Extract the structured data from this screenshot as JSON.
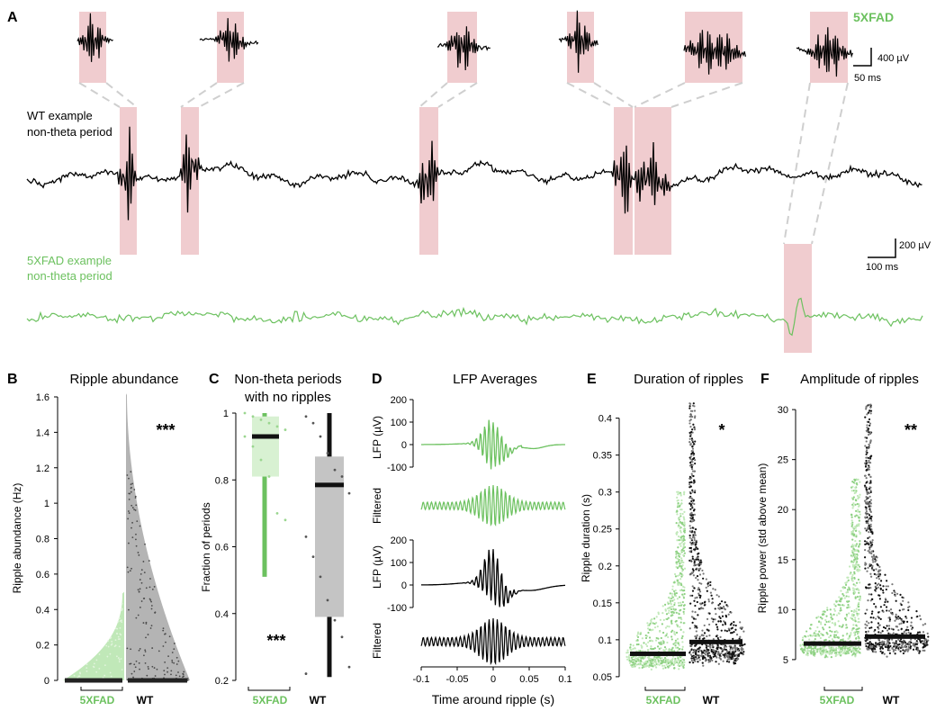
{
  "colors": {
    "fad": "#6cc15f",
    "fad_light": "#b9e6b0",
    "fad_box": "#d8f1d2",
    "wt": "#000000",
    "wt_fill": "#b4b4b4",
    "highlight": "#f0cccf",
    "connector": "#cfcfcf"
  },
  "panels": {
    "A": "A",
    "B": "B",
    "C": "C",
    "D": "D",
    "E": "E",
    "F": "F"
  },
  "panel_a": {
    "legend_label": "5XFAD",
    "wt_label_line1": "WT example",
    "wt_label_line2": "non-theta period",
    "fad_label_line1": "5XFAD example",
    "fad_label_line2": "non-theta period",
    "scalebar_inset_v": "400 µV",
    "scalebar_inset_t": "50 ms",
    "scalebar_main_v": "200 µV",
    "scalebar_main_t": "100 ms"
  },
  "chart_data": [
    {
      "panel": "B",
      "type": "violin",
      "title": "Ripple abundance",
      "xlabel": "",
      "ylabel": "Ripple abundance (Hz)",
      "ylim": [
        0,
        1.6
      ],
      "yticks": [
        "0",
        "0.2",
        "0.4",
        "0.6",
        "0.8",
        "1",
        "1.2",
        "1.4",
        "1.6"
      ],
      "categories": [
        "5XFAD",
        "WT"
      ],
      "medians": [
        0.0,
        0.0
      ],
      "maxima": [
        0.5,
        1.62
      ],
      "significance": "***"
    },
    {
      "panel": "C",
      "type": "box",
      "title_line1": "Non-theta periods",
      "title_line2": "with no ripples",
      "ylabel": "Fraction of periods",
      "ylim": [
        0.2,
        1.0
      ],
      "yticks": [
        "0.2",
        "0.4",
        "0.6",
        "0.8",
        "1"
      ],
      "categories": [
        "5XFAD",
        "WT"
      ],
      "series": [
        {
          "name": "5XFAD",
          "median": 0.93,
          "q1": 0.81,
          "q3": 0.99,
          "whisker_low": 0.51,
          "whisker_high": 1.0,
          "points": [
            1.0,
            0.99,
            0.98,
            0.97,
            0.96,
            0.95,
            0.93,
            0.9,
            0.86,
            0.81,
            0.7,
            0.68
          ]
        },
        {
          "name": "WT",
          "median": 0.785,
          "q1": 0.39,
          "q3": 0.87,
          "whisker_low": 0.21,
          "whisker_high": 1.0,
          "points": [
            0.99,
            0.97,
            0.93,
            0.88,
            0.83,
            0.81,
            0.76,
            0.63,
            0.57,
            0.51,
            0.44,
            0.38,
            0.33,
            0.24,
            0.22
          ]
        }
      ],
      "significance": "***"
    },
    {
      "panel": "D",
      "type": "line",
      "title": "LFP Averages",
      "xlabel": "Time around ripple (s)",
      "xlim": [
        -0.1,
        0.1
      ],
      "xticks": [
        "-0.1",
        "-0.05",
        "0",
        "0.05",
        "0.1"
      ],
      "ylabel_lfp": "LFP (µV)",
      "ylabel_filtered": "Filtered",
      "yticks_lfp": [
        "200",
        "100",
        "0",
        "-100"
      ],
      "series": [
        {
          "name": "5XFAD LFP",
          "ylim": [
            -100,
            200
          ]
        },
        {
          "name": "5XFAD Filtered"
        },
        {
          "name": "WT LFP",
          "ylim": [
            -100,
            200
          ]
        },
        {
          "name": "WT Filtered"
        }
      ]
    },
    {
      "panel": "E",
      "type": "violin",
      "title": "Duration of ripples",
      "ylabel": "Ripple duration (s)",
      "ylim": [
        0.045,
        0.43
      ],
      "yticks": [
        "0.05",
        "0.1",
        "0.15",
        "0.2",
        "0.25",
        "0.3",
        "0.35",
        "0.4"
      ],
      "categories": [
        "5XFAD",
        "WT"
      ],
      "medians": [
        0.081,
        0.097
      ],
      "maxima": [
        0.3,
        0.42
      ],
      "significance": "*"
    },
    {
      "panel": "F",
      "type": "violin",
      "title": "Amplitude of ripples",
      "ylabel": "Ripple power (std above mean)",
      "ylim": [
        4,
        31
      ],
      "yticks": [
        "5",
        "10",
        "15",
        "20",
        "25",
        "30"
      ],
      "categories": [
        "5XFAD",
        "WT"
      ],
      "medians": [
        6.6,
        7.3
      ],
      "maxima": [
        23,
        30.5
      ],
      "significance": "**"
    }
  ]
}
